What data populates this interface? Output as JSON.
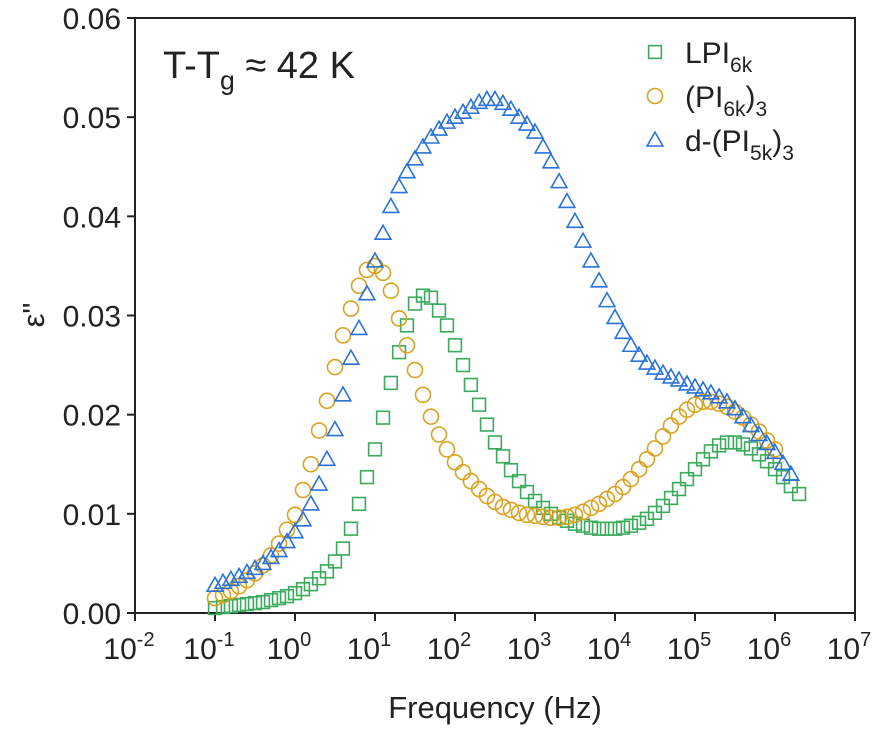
{
  "chart_data": {
    "type": "scatter",
    "title": [
      {
        "text": "T-T"
      },
      {
        "text": "g",
        "sub": true
      },
      {
        "text": " ≈ 42 K"
      }
    ],
    "xlabel": "Frequency (Hz)",
    "ylabel": "ε\"",
    "xscale": "log",
    "xlim": [
      0.01,
      10000000
    ],
    "ylim": [
      0,
      0.06
    ],
    "xticks": [
      {
        "value": 0.01,
        "label": "10",
        "exponent": "-2"
      },
      {
        "value": 0.1,
        "label": "10",
        "exponent": "-1"
      },
      {
        "value": 1,
        "label": "10",
        "exponent": "0"
      },
      {
        "value": 10,
        "label": "10",
        "exponent": "1"
      },
      {
        "value": 100,
        "label": "10",
        "exponent": "2"
      },
      {
        "value": 1000,
        "label": "10",
        "exponent": "3"
      },
      {
        "value": 10000,
        "label": "10",
        "exponent": "4"
      },
      {
        "value": 100000,
        "label": "10",
        "exponent": "5"
      },
      {
        "value": 1000000,
        "label": "10",
        "exponent": "6"
      },
      {
        "value": 10000000,
        "label": "10",
        "exponent": "7"
      }
    ],
    "yticks": [
      {
        "value": 0,
        "label": "0.00"
      },
      {
        "value": 0.01,
        "label": "0.01"
      },
      {
        "value": 0.02,
        "label": "0.02"
      },
      {
        "value": 0.03,
        "label": "0.03"
      },
      {
        "value": 0.04,
        "label": "0.04"
      },
      {
        "value": 0.05,
        "label": "0.05"
      },
      {
        "value": 0.06,
        "label": "0.06"
      }
    ],
    "legend": "upper right",
    "x": [
      0.1,
      0.126,
      0.158,
      0.2,
      0.251,
      0.316,
      0.398,
      0.501,
      0.631,
      0.794,
      1,
      1.26,
      1.58,
      2,
      2.51,
      3.16,
      3.98,
      5.01,
      6.31,
      7.94,
      10,
      12.6,
      15.8,
      20,
      25.1,
      31.6,
      39.8,
      50.1,
      63.1,
      79.4,
      100,
      126,
      158,
      200,
      251,
      316,
      398,
      501,
      631,
      794,
      1000,
      1260,
      1580,
      2000,
      2510,
      3160,
      3980,
      5010,
      6310,
      7940,
      10000,
      12600,
      15800,
      20000,
      25100,
      31600,
      39800,
      50100,
      63100,
      79400,
      100000,
      126000,
      158000,
      200000,
      251000,
      316000,
      398000,
      501000,
      631000,
      794000,
      1000000,
      1260000,
      1580000,
      2000000
    ],
    "series": [
      {
        "name": [
          {
            "text": "LPI"
          },
          {
            "text": "6k",
            "sub": true
          }
        ],
        "color": "#3aaa5c",
        "marker": "square",
        "values": [
          0.0005,
          0.0006,
          0.0007,
          0.0008,
          0.0009,
          0.001,
          0.0011,
          0.0013,
          0.0015,
          0.0017,
          0.002,
          0.0024,
          0.0029,
          0.0035,
          0.0042,
          0.0052,
          0.0065,
          0.0085,
          0.011,
          0.0137,
          0.0165,
          0.0197,
          0.0232,
          0.0263,
          0.029,
          0.0312,
          0.032,
          0.0318,
          0.0305,
          0.029,
          0.027,
          0.025,
          0.023,
          0.021,
          0.019,
          0.0172,
          0.0158,
          0.0144,
          0.0133,
          0.0122,
          0.0113,
          0.0106,
          0.01,
          0.0096,
          0.0093,
          0.009,
          0.0088,
          0.0086,
          0.0085,
          0.0085,
          0.0085,
          0.0086,
          0.0088,
          0.0091,
          0.0095,
          0.0101,
          0.0108,
          0.0116,
          0.0125,
          0.0135,
          0.0145,
          0.0155,
          0.0163,
          0.0169,
          0.0172,
          0.0172,
          0.017,
          0.0166,
          0.016,
          0.0153,
          0.0145,
          0.0137,
          0.0128,
          0.012
        ]
      },
      {
        "name": [
          {
            "text": "(PI"
          },
          {
            "text": "6k",
            "sub": true
          },
          {
            "text": ")"
          },
          {
            "text": "3",
            "sub": true
          }
        ],
        "color": "#d9a21f",
        "marker": "circle",
        "values": [
          0.0015,
          0.0018,
          0.0022,
          0.0027,
          0.0033,
          0.004,
          0.0048,
          0.0058,
          0.007,
          0.0084,
          0.0099,
          0.0124,
          0.015,
          0.0184,
          0.0214,
          0.0248,
          0.028,
          0.0307,
          0.033,
          0.0346,
          0.035,
          0.0343,
          0.0325,
          0.0297,
          0.027,
          0.0245,
          0.022,
          0.0198,
          0.018,
          0.0165,
          0.0152,
          0.0142,
          0.0133,
          0.0125,
          0.0118,
          0.0112,
          0.0107,
          0.0104,
          0.0101,
          0.0099,
          0.0098,
          0.0097,
          0.0096,
          0.0096,
          0.0097,
          0.0099,
          0.0102,
          0.0106,
          0.011,
          0.0115,
          0.012,
          0.0127,
          0.0135,
          0.0145,
          0.0155,
          0.0166,
          0.0178,
          0.0189,
          0.0198,
          0.0205,
          0.021,
          0.0213,
          0.0213,
          0.0211,
          0.0208,
          0.0203,
          0.0197,
          0.019,
          0.0183,
          0.0174,
          0.0165,
          null,
          null,
          null
        ]
      },
      {
        "name": [
          {
            "text": "d-(PI"
          },
          {
            "text": "5k",
            "sub": true
          },
          {
            "text": ")"
          },
          {
            "text": "3",
            "sub": true
          }
        ],
        "color": "#2a72d8",
        "marker": "triangle",
        "values": [
          0.0028,
          0.0031,
          0.0034,
          0.0037,
          0.0041,
          0.0045,
          0.005,
          0.0056,
          0.0063,
          0.0072,
          0.0082,
          0.0094,
          0.011,
          0.013,
          0.0155,
          0.0185,
          0.022,
          0.0257,
          0.0287,
          0.0322,
          0.0355,
          0.0383,
          0.041,
          0.043,
          0.0445,
          0.0458,
          0.047,
          0.048,
          0.0488,
          0.0495,
          0.05,
          0.0505,
          0.051,
          0.0515,
          0.0518,
          0.0518,
          0.0514,
          0.0508,
          0.05,
          0.0493,
          0.0485,
          0.047,
          0.0455,
          0.0435,
          0.0415,
          0.0395,
          0.0375,
          0.0355,
          0.0335,
          0.0315,
          0.0298,
          0.0283,
          0.027,
          0.026,
          0.0252,
          0.0247,
          0.0242,
          0.0238,
          0.0235,
          0.0231,
          0.0228,
          0.0225,
          0.0222,
          0.0218,
          0.0213,
          0.0206,
          0.0198,
          0.0189,
          0.018,
          0.0171,
          0.0162,
          0.0151,
          0.014,
          null
        ]
      }
    ]
  }
}
